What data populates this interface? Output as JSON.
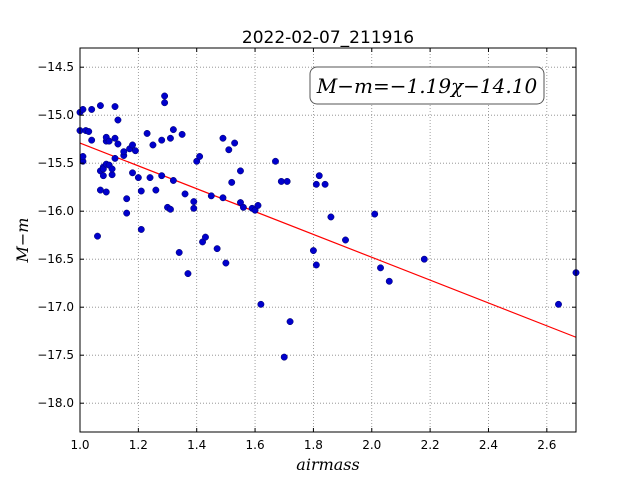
{
  "chart_data": {
    "type": "scatter",
    "title": "2022-02-07_211916",
    "xlabel": "airmass",
    "ylabel": "M−m",
    "xlim": [
      1.0,
      2.7
    ],
    "ylim": [
      -18.3,
      -14.3
    ],
    "y_inverted": true,
    "grid": true,
    "x_ticks": [
      "1.0",
      "1.2",
      "1.4",
      "1.6",
      "1.8",
      "2.0",
      "2.2",
      "2.4",
      "2.6"
    ],
    "y_ticks": [
      "−14.5",
      "−15.0",
      "−15.5",
      "−16.0",
      "−16.5",
      "−17.0",
      "−17.5",
      "−18.0"
    ],
    "annotation": "M−m=−1.19χ−14.10",
    "fit": {
      "slope": -1.19,
      "intercept": -14.1,
      "color": "#ff0000"
    },
    "point_color": "#0000cc",
    "points": [
      [
        1.0,
        -14.97
      ],
      [
        1.0,
        -15.16
      ],
      [
        1.01,
        -15.48
      ],
      [
        1.01,
        -15.43
      ],
      [
        1.01,
        -14.94
      ],
      [
        1.02,
        -15.16
      ],
      [
        1.03,
        -15.17
      ],
      [
        1.04,
        -14.94
      ],
      [
        1.04,
        -15.26
      ],
      [
        1.06,
        -16.26
      ],
      [
        1.07,
        -15.78
      ],
      [
        1.07,
        -14.9
      ],
      [
        1.07,
        -15.58
      ],
      [
        1.08,
        -15.54
      ],
      [
        1.08,
        -15.63
      ],
      [
        1.08,
        -15.56
      ],
      [
        1.09,
        -15.8
      ],
      [
        1.09,
        -15.51
      ],
      [
        1.09,
        -15.27
      ],
      [
        1.09,
        -15.23
      ],
      [
        1.1,
        -15.27
      ],
      [
        1.1,
        -15.52
      ],
      [
        1.11,
        -15.62
      ],
      [
        1.11,
        -15.56
      ],
      [
        1.12,
        -15.24
      ],
      [
        1.12,
        -15.45
      ],
      [
        1.12,
        -14.91
      ],
      [
        1.13,
        -15.05
      ],
      [
        1.13,
        -15.3
      ],
      [
        1.15,
        -15.42
      ],
      [
        1.15,
        -15.38
      ],
      [
        1.16,
        -15.87
      ],
      [
        1.16,
        -16.02
      ],
      [
        1.17,
        -15.35
      ],
      [
        1.18,
        -15.31
      ],
      [
        1.18,
        -15.6
      ],
      [
        1.19,
        -15.37
      ],
      [
        1.2,
        -15.65
      ],
      [
        1.21,
        -15.79
      ],
      [
        1.21,
        -16.19
      ],
      [
        1.23,
        -15.19
      ],
      [
        1.24,
        -15.65
      ],
      [
        1.25,
        -15.31
      ],
      [
        1.26,
        -15.78
      ],
      [
        1.28,
        -15.63
      ],
      [
        1.28,
        -15.26
      ],
      [
        1.29,
        -14.8
      ],
      [
        1.29,
        -14.87
      ],
      [
        1.3,
        -15.96
      ],
      [
        1.31,
        -15.98
      ],
      [
        1.31,
        -15.24
      ],
      [
        1.32,
        -15.68
      ],
      [
        1.32,
        -15.15
      ],
      [
        1.34,
        -16.43
      ],
      [
        1.35,
        -15.2
      ],
      [
        1.36,
        -15.82
      ],
      [
        1.37,
        -16.65
      ],
      [
        1.39,
        -15.9
      ],
      [
        1.39,
        -15.97
      ],
      [
        1.4,
        -15.48
      ],
      [
        1.41,
        -15.43
      ],
      [
        1.42,
        -16.32
      ],
      [
        1.43,
        -16.27
      ],
      [
        1.45,
        -15.84
      ],
      [
        1.47,
        -16.39
      ],
      [
        1.49,
        -15.24
      ],
      [
        1.49,
        -15.86
      ],
      [
        1.5,
        -16.54
      ],
      [
        1.51,
        -15.36
      ],
      [
        1.52,
        -15.7
      ],
      [
        1.53,
        -15.29
      ],
      [
        1.55,
        -15.91
      ],
      [
        1.55,
        -15.58
      ],
      [
        1.56,
        -15.96
      ],
      [
        1.59,
        -15.97
      ],
      [
        1.6,
        -15.99
      ],
      [
        1.61,
        -15.94
      ],
      [
        1.62,
        -16.97
      ],
      [
        1.67,
        -15.48
      ],
      [
        1.69,
        -15.69
      ],
      [
        1.7,
        -17.52
      ],
      [
        1.71,
        -15.69
      ],
      [
        1.72,
        -17.15
      ],
      [
        1.8,
        -16.41
      ],
      [
        1.81,
        -15.72
      ],
      [
        1.81,
        -16.56
      ],
      [
        1.82,
        -15.63
      ],
      [
        1.84,
        -15.72
      ],
      [
        1.86,
        -16.06
      ],
      [
        1.91,
        -16.3
      ],
      [
        2.01,
        -16.03
      ],
      [
        2.03,
        -16.59
      ],
      [
        2.06,
        -16.73
      ],
      [
        2.18,
        -16.5
      ],
      [
        2.64,
        -16.97
      ],
      [
        2.7,
        -16.64
      ]
    ]
  }
}
